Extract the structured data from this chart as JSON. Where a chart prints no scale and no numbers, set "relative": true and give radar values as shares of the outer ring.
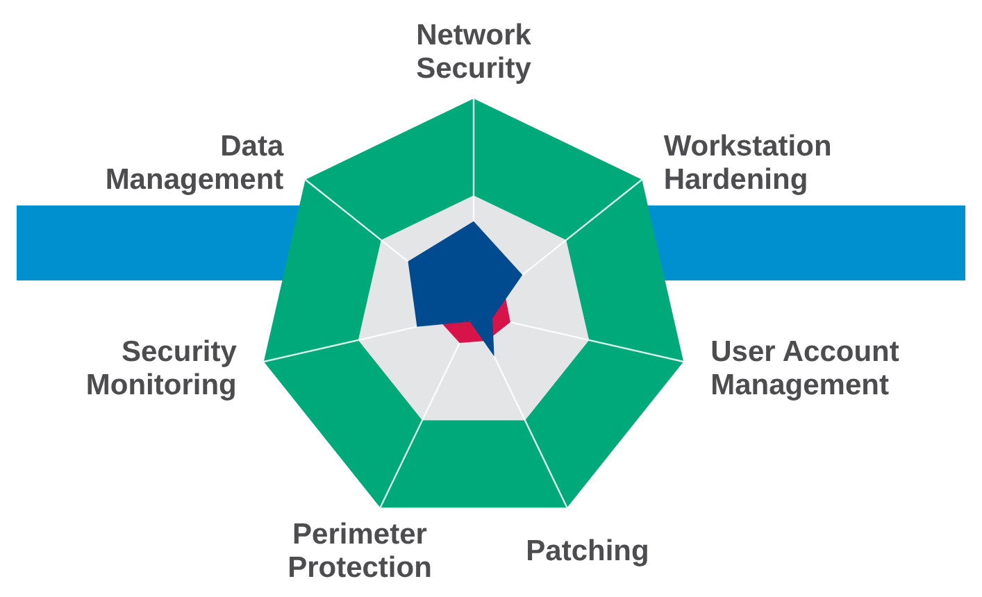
{
  "chart_data": {
    "type": "radar",
    "relative": true,
    "categories": [
      "Network Security",
      "Workstation Hardening",
      "User Account Management",
      "Patching",
      "Perimeter Protection",
      "Security Monitoring",
      "Data Management"
    ],
    "series": [
      {
        "color": "#d6144a",
        "values": [
          null,
          0.18,
          0.175,
          0.14,
          0.15,
          0.16,
          null
        ]
      },
      {
        "color": "#004a8f",
        "values": [
          0.43,
          0.29,
          0.09,
          0.22,
          0.04,
          0.27,
          0.39
        ]
      }
    ]
  }
}
